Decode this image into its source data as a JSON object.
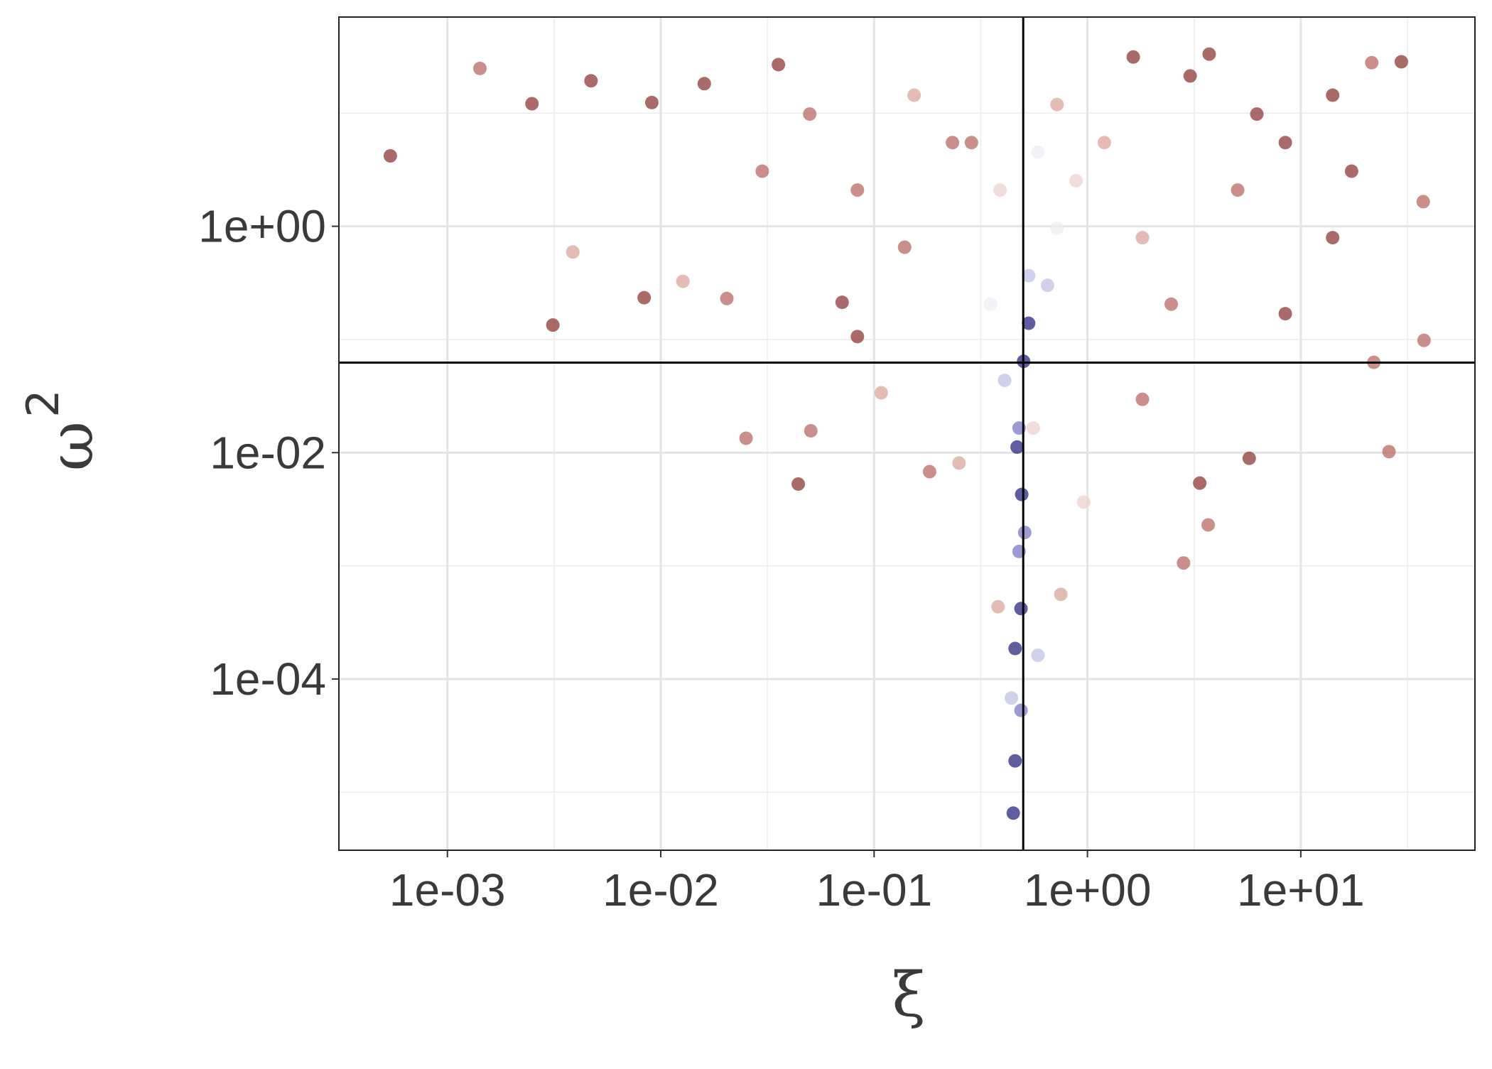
{
  "chart_data": {
    "type": "scatter",
    "xlabel": "ξ",
    "ylabel": "ω",
    "ylabel_superscript": "2",
    "xlog": true,
    "ylog": true,
    "grid": true,
    "xlim": [
      0.00031,
      65.5
    ],
    "ylim": [
      3.07e-06,
      70.6
    ],
    "xticks": [
      {
        "value": 0.001,
        "label": "1e-03"
      },
      {
        "value": 0.01,
        "label": "1e-02"
      },
      {
        "value": 0.1,
        "label": "1e-01"
      },
      {
        "value": 1,
        "label": "1e+00"
      },
      {
        "value": 10,
        "label": "1e+01"
      }
    ],
    "yticks": [
      {
        "value": 0.0001,
        "label": "1e-04"
      },
      {
        "value": 0.01,
        "label": "1e-02"
      },
      {
        "value": 1,
        "label": "1e+00"
      }
    ],
    "xminorticks": [
      0.0031623,
      0.031623,
      0.31623,
      3.1623,
      31.623
    ],
    "yminorticks": [
      1e-05,
      0.001,
      0.1,
      10
    ],
    "vline": 0.5,
    "hline": 0.0625,
    "x": [
      0.00054,
      0.00142,
      0.00249,
      0.00312,
      0.00387,
      0.00836,
      0.00908,
      0.0127,
      0.016,
      0.0204,
      0.0251,
      0.0356,
      0.0441,
      0.0505,
      0.0708,
      0.0835,
      0.108,
      0.182,
      0.25,
      0.449,
      0.458,
      0.488,
      0.44,
      0.458,
      0.488,
      0.586,
      0.381,
      0.75,
      0.478,
      0.492,
      0.478,
      0.502,
      0.53,
      0.409,
      0.65,
      0.72,
      0.884,
      1.2,
      0.72,
      0.233,
      0.139,
      1.64,
      3.03,
      3.72,
      5.06,
      8.46,
      14.1,
      21.5,
      29.6,
      37.5,
      37.8,
      25.9,
      22.0,
      5.73,
      3.68,
      2.82,
      3.36,
      0.96,
      1.81,
      8.46,
      14.1,
      1.81,
      2.47,
      0.389,
      0.286,
      0.0835,
      0.0499,
      0.0299,
      0.00471,
      0.53,
      0.351,
      0.586,
      6.22,
      17.3,
      0.154,
      0.468,
      0.508,
      0.557
    ],
    "values": [
      4.19,
      24.8,
      12.1,
      0.134,
      0.593,
      0.234,
      12.4,
      0.326,
      18.2,
      0.23,
      0.0134,
      26.8,
      0.00528,
      0.0156,
      0.213,
      0.106,
      0.0338,
      0.00679,
      0.00809,
      6.53e-06,
      1.89e-05,
      5.28e-05,
      6.79e-05,
      0.000186,
      0.000419,
      0.000162,
      0.000435,
      0.00056,
      0.00134,
      0.00427,
      0.0165,
      0.0641,
      0.139,
      0.0435,
      0.301,
      0.962,
      2.53,
      5.49,
      11.9,
      5.49,
      0.653,
      31.3,
      21.3,
      33.2,
      2.09,
      5.49,
      14.4,
      27.9,
      28.4,
      1.65,
      0.0982,
      0.0102,
      0.0628,
      0.00891,
      0.0023,
      0.00106,
      0.00538,
      0.00366,
      0.0296,
      0.169,
      0.793,
      0.793,
      0.205,
      2.09,
      5.49,
      2.09,
      9.81,
      3.07,
      19.3,
      0.366,
      0.205,
      4.52,
      9.81,
      3.07,
      14.4,
      0.0112,
      0.00197,
      0.0165
    ],
    "colors": [
      "#8e3a35",
      "#b86a63",
      "#8e3a35",
      "#8e3a35",
      "#d9a59c",
      "#8e3a35",
      "#8e3a35",
      "#d9a59c",
      "#8e3a35",
      "#b86a63",
      "#b86a63",
      "#8e3a35",
      "#8e3a35",
      "#b86a63",
      "#8e3a35",
      "#8e3a35",
      "#d9a59c",
      "#b86a63",
      "#d9a59c",
      "#2b2580",
      "#2b2580",
      "#7e79c6",
      "#c3c1e5",
      "#2b2580",
      "#2b2580",
      "#c3c1e5",
      "#d9a59c",
      "#d9a59c",
      "#7e79c6",
      "#2b2580",
      "#7e79c6",
      "#2b2580",
      "#2b2580",
      "#c3c1e5",
      "#c3c1e5",
      "#efedf6",
      "#ecd3cd",
      "#d9a59c",
      "#d9a59c",
      "#b86a63",
      "#b86a63",
      "#8e3a35",
      "#8e3a35",
      "#8e3a35",
      "#b86a63",
      "#8e3a35",
      "#8e3a35",
      "#b86a63",
      "#8e3a35",
      "#b86a63",
      "#b86a63",
      "#b86a63",
      "#b86a63",
      "#8e3a35",
      "#b86a63",
      "#b86a63",
      "#8e3a35",
      "#ecd3cd",
      "#b86a63",
      "#8e3a35",
      "#8e3a35",
      "#d9a59c",
      "#b86a63",
      "#ecd3cd",
      "#b86a63",
      "#b86a63",
      "#b86a63",
      "#b86a63",
      "#8e3a35",
      "#c3c1e5",
      "#efedf6",
      "#efedf6",
      "#8e3a35",
      "#8e3a35",
      "#d9a59c",
      "#2b2580",
      "#7e79c6",
      "#ecd3cd"
    ]
  }
}
